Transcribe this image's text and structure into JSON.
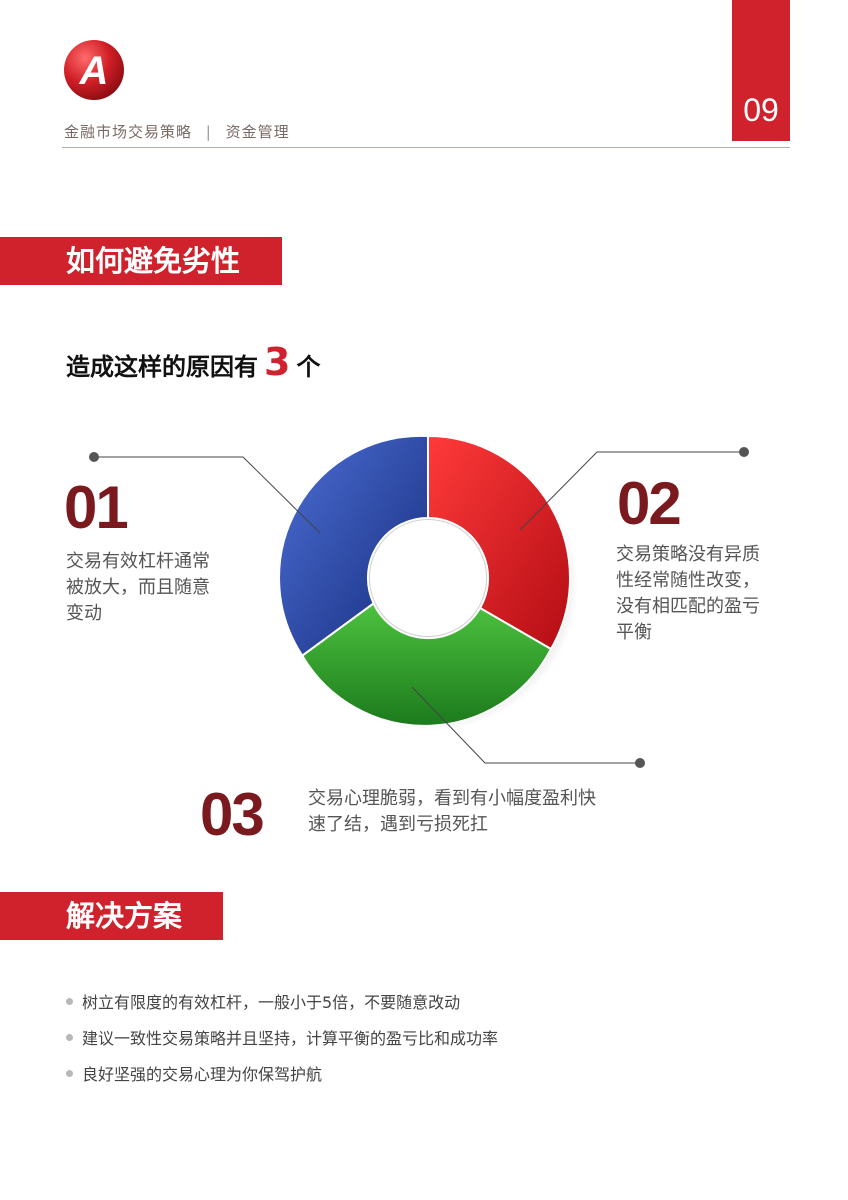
{
  "header": {
    "brand": "金融市场交易策略",
    "separator": "|",
    "section": "资金管理",
    "page_number": "09",
    "logo_letter": "A"
  },
  "section1": {
    "title": "如何避免劣性",
    "subtitle_before": "造成这样的原因有",
    "subtitle_count": "3",
    "subtitle_after": "个"
  },
  "reasons": [
    {
      "number": "01",
      "lines": [
        "交易有效杠杆通常",
        "被放大，而且随意",
        "变动"
      ],
      "color": "#1f3f9e"
    },
    {
      "number": "02",
      "lines": [
        "交易策略没有异质",
        "性经常随性改变，",
        "没有相匹配的盈亏",
        "平衡"
      ],
      "color": "#e0161f"
    },
    {
      "number": "03",
      "lines": [
        "交易心理脆弱，看到有小幅度盈利快",
        "速了结，遇到亏损死扛"
      ],
      "color": "#2fa12b"
    }
  ],
  "section2": {
    "title": "解决方案",
    "bullets": [
      "树立有限度的有效杠杆，一般小于5倍，不要随意改动",
      "建议一致性交易策略并且坚持，计算平衡的盈亏比和成功率",
      "良好坚强的交易心理为你保驾护航"
    ]
  }
}
